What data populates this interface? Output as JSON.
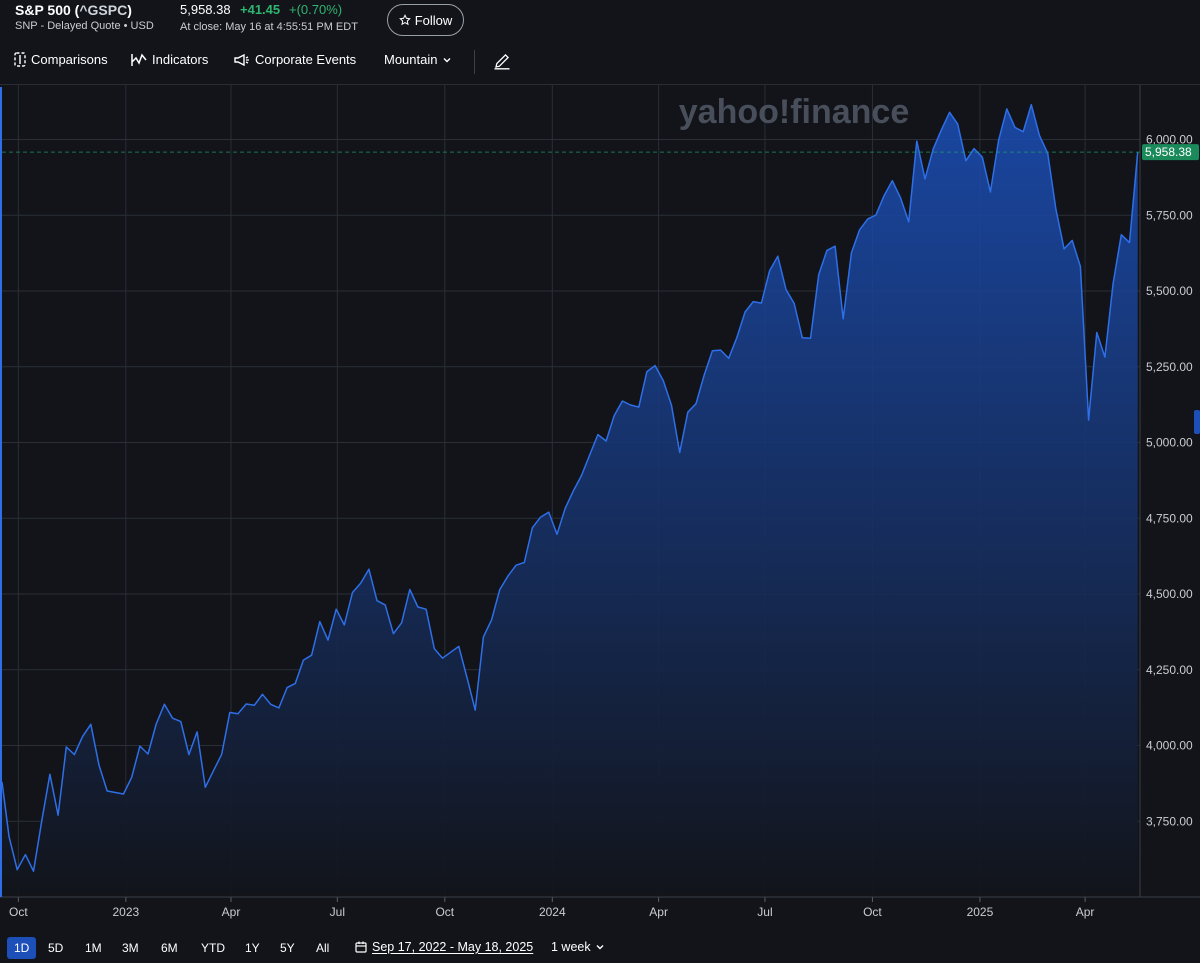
{
  "header": {
    "name_prefix": "S&P 500 (",
    "symbol": "^GSPC",
    "name_suffix": ")",
    "exchange": "SNP - Delayed Quote • USD",
    "price": "5,958.38",
    "change": "+41.45",
    "change_pct": "+(0.70%)",
    "close_time": "At close: May 16 at 4:55:51 PM EDT",
    "follow_label": "Follow",
    "follow_icon": "star-outline-icon"
  },
  "toolbar": {
    "comparisons_label": "Comparisons",
    "comparisons_icon": "compare-icon",
    "indicators_label": "Indicators",
    "indicators_icon": "indicator-icon",
    "events_label": "Corporate Events",
    "events_icon": "megaphone-icon",
    "chart_type_label": "Mountain",
    "draw_icon": "pencil-icon"
  },
  "watermark": "yahoo!finance",
  "colors": {
    "line": "#2e6fe8",
    "fill_top": "#1b4fb8",
    "fill_bottom": "#12141a",
    "price_tag": "#1a8a5a",
    "active_range": "#1d4fb8",
    "positive": "#2fb56f"
  },
  "bottom": {
    "ranges": [
      "1D",
      "5D",
      "1M",
      "3M",
      "6M",
      "YTD",
      "1Y",
      "5Y",
      "All"
    ],
    "active_range": "1D",
    "date_range": "Sep 17, 2022 - May 18, 2025",
    "interval": "1 week"
  },
  "chart_data": {
    "type": "area",
    "title": "",
    "xlabel": "",
    "ylabel": "",
    "ylim": [
      3500,
      6180
    ],
    "y_ticks": [
      "3,750.00",
      "4,000.00",
      "4,250.00",
      "4,500.00",
      "4,750.00",
      "5,000.00",
      "5,250.00",
      "5,500.00",
      "5,750.00",
      "6,000.00"
    ],
    "y_tick_values": [
      3750,
      4000,
      4250,
      4500,
      4750,
      5000,
      5250,
      5500,
      5750,
      6000
    ],
    "x_tick_labels": [
      {
        "label": "Oct",
        "date": "2022-10-01"
      },
      {
        "label": "2023",
        "date": "2023-01-01"
      },
      {
        "label": "Apr",
        "date": "2023-04-01"
      },
      {
        "label": "Jul",
        "date": "2023-07-01"
      },
      {
        "label": "Oct",
        "date": "2023-10-01"
      },
      {
        "label": "2024",
        "date": "2024-01-01"
      },
      {
        "label": "Apr",
        "date": "2024-04-01"
      },
      {
        "label": "Jul",
        "date": "2024-07-01"
      },
      {
        "label": "Oct",
        "date": "2024-10-01"
      },
      {
        "label": "2025",
        "date": "2025-01-01"
      },
      {
        "label": "Apr",
        "date": "2025-04-01"
      }
    ],
    "x_range": [
      "2022-09-17",
      "2025-05-18"
    ],
    "last_price_label": "5,958.38",
    "last_price": 5958.38,
    "grid": true,
    "series": [
      {
        "points": [
          [
            "2022-09-17",
            3880
          ],
          [
            "2022-09-23",
            3700
          ],
          [
            "2022-09-30",
            3590
          ],
          [
            "2022-10-07",
            3640
          ],
          [
            "2022-10-14",
            3585
          ],
          [
            "2022-10-21",
            3750
          ],
          [
            "2022-10-28",
            3905
          ],
          [
            "2022-11-04",
            3770
          ],
          [
            "2022-11-11",
            3995
          ],
          [
            "2022-11-18",
            3970
          ],
          [
            "2022-11-25",
            4030
          ],
          [
            "2022-12-02",
            4070
          ],
          [
            "2022-12-09",
            3935
          ],
          [
            "2022-12-16",
            3850
          ],
          [
            "2022-12-23",
            3845
          ],
          [
            "2022-12-30",
            3840
          ],
          [
            "2023-01-06",
            3895
          ],
          [
            "2023-01-13",
            3998
          ],
          [
            "2023-01-20",
            3972
          ],
          [
            "2023-01-27",
            4071
          ],
          [
            "2023-02-03",
            4136
          ],
          [
            "2023-02-10",
            4090
          ],
          [
            "2023-02-17",
            4079
          ],
          [
            "2023-02-24",
            3970
          ],
          [
            "2023-03-03",
            4045
          ],
          [
            "2023-03-10",
            3862
          ],
          [
            "2023-03-17",
            3917
          ],
          [
            "2023-03-24",
            3971
          ],
          [
            "2023-03-31",
            4109
          ],
          [
            "2023-04-07",
            4105
          ],
          [
            "2023-04-14",
            4137
          ],
          [
            "2023-04-21",
            4133
          ],
          [
            "2023-04-28",
            4169
          ],
          [
            "2023-05-05",
            4136
          ],
          [
            "2023-05-12",
            4124
          ],
          [
            "2023-05-19",
            4191
          ],
          [
            "2023-05-26",
            4205
          ],
          [
            "2023-06-02",
            4282
          ],
          [
            "2023-06-09",
            4298
          ],
          [
            "2023-06-16",
            4409
          ],
          [
            "2023-06-23",
            4348
          ],
          [
            "2023-06-30",
            4450
          ],
          [
            "2023-07-07",
            4398
          ],
          [
            "2023-07-14",
            4505
          ],
          [
            "2023-07-21",
            4536
          ],
          [
            "2023-07-28",
            4582
          ],
          [
            "2023-08-04",
            4478
          ],
          [
            "2023-08-11",
            4464
          ],
          [
            "2023-08-18",
            4369
          ],
          [
            "2023-08-25",
            4405
          ],
          [
            "2023-09-01",
            4515
          ],
          [
            "2023-09-08",
            4457
          ],
          [
            "2023-09-15",
            4450
          ],
          [
            "2023-09-22",
            4320
          ],
          [
            "2023-09-29",
            4288
          ],
          [
            "2023-10-06",
            4308
          ],
          [
            "2023-10-13",
            4327
          ],
          [
            "2023-10-20",
            4224
          ],
          [
            "2023-10-27",
            4117
          ],
          [
            "2023-11-03",
            4358
          ],
          [
            "2023-11-10",
            4415
          ],
          [
            "2023-11-17",
            4514
          ],
          [
            "2023-11-24",
            4559
          ],
          [
            "2023-12-01",
            4595
          ],
          [
            "2023-12-08",
            4604
          ],
          [
            "2023-12-15",
            4719
          ],
          [
            "2023-12-22",
            4754
          ],
          [
            "2023-12-29",
            4770
          ],
          [
            "2024-01-05",
            4697
          ],
          [
            "2024-01-12",
            4783
          ],
          [
            "2024-01-19",
            4840
          ],
          [
            "2024-01-26",
            4891
          ],
          [
            "2024-02-02",
            4959
          ],
          [
            "2024-02-09",
            5026
          ],
          [
            "2024-02-16",
            5005
          ],
          [
            "2024-02-23",
            5089
          ],
          [
            "2024-03-01",
            5137
          ],
          [
            "2024-03-08",
            5124
          ],
          [
            "2024-03-15",
            5117
          ],
          [
            "2024-03-22",
            5234
          ],
          [
            "2024-03-29",
            5254
          ],
          [
            "2024-04-05",
            5204
          ],
          [
            "2024-04-12",
            5123
          ],
          [
            "2024-04-19",
            4967
          ],
          [
            "2024-04-26",
            5100
          ],
          [
            "2024-05-03",
            5128
          ],
          [
            "2024-05-10",
            5223
          ],
          [
            "2024-05-17",
            5303
          ],
          [
            "2024-05-24",
            5305
          ],
          [
            "2024-05-31",
            5278
          ],
          [
            "2024-06-07",
            5347
          ],
          [
            "2024-06-14",
            5431
          ],
          [
            "2024-06-21",
            5465
          ],
          [
            "2024-06-28",
            5460
          ],
          [
            "2024-07-05",
            5567
          ],
          [
            "2024-07-12",
            5615
          ],
          [
            "2024-07-19",
            5505
          ],
          [
            "2024-07-26",
            5459
          ],
          [
            "2024-08-02",
            5346
          ],
          [
            "2024-08-09",
            5344
          ],
          [
            "2024-08-16",
            5554
          ],
          [
            "2024-08-23",
            5634
          ],
          [
            "2024-08-30",
            5648
          ],
          [
            "2024-09-06",
            5408
          ],
          [
            "2024-09-13",
            5626
          ],
          [
            "2024-09-20",
            5702
          ],
          [
            "2024-09-27",
            5738
          ],
          [
            "2024-10-04",
            5751
          ],
          [
            "2024-10-11",
            5815
          ],
          [
            "2024-10-18",
            5864
          ],
          [
            "2024-10-25",
            5808
          ],
          [
            "2024-11-01",
            5728
          ],
          [
            "2024-11-08",
            5995
          ],
          [
            "2024-11-15",
            5870
          ],
          [
            "2024-11-22",
            5969
          ],
          [
            "2024-11-29",
            6032
          ],
          [
            "2024-12-06",
            6090
          ],
          [
            "2024-12-13",
            6051
          ],
          [
            "2024-12-20",
            5930
          ],
          [
            "2024-12-27",
            5970
          ],
          [
            "2025-01-03",
            5942
          ],
          [
            "2025-01-10",
            5827
          ],
          [
            "2025-01-17",
            5997
          ],
          [
            "2025-01-24",
            6101
          ],
          [
            "2025-01-31",
            6040
          ],
          [
            "2025-02-07",
            6026
          ],
          [
            "2025-02-14",
            6115
          ],
          [
            "2025-02-21",
            6013
          ],
          [
            "2025-02-28",
            5955
          ],
          [
            "2025-03-07",
            5770
          ],
          [
            "2025-03-14",
            5639
          ],
          [
            "2025-03-21",
            5667
          ],
          [
            "2025-03-28",
            5581
          ],
          [
            "2025-04-04",
            5074
          ],
          [
            "2025-04-11",
            5363
          ],
          [
            "2025-04-18",
            5282
          ],
          [
            "2025-04-25",
            5525
          ],
          [
            "2025-05-02",
            5686
          ],
          [
            "2025-05-09",
            5660
          ],
          [
            "2025-05-16",
            5958
          ]
        ]
      }
    ]
  }
}
